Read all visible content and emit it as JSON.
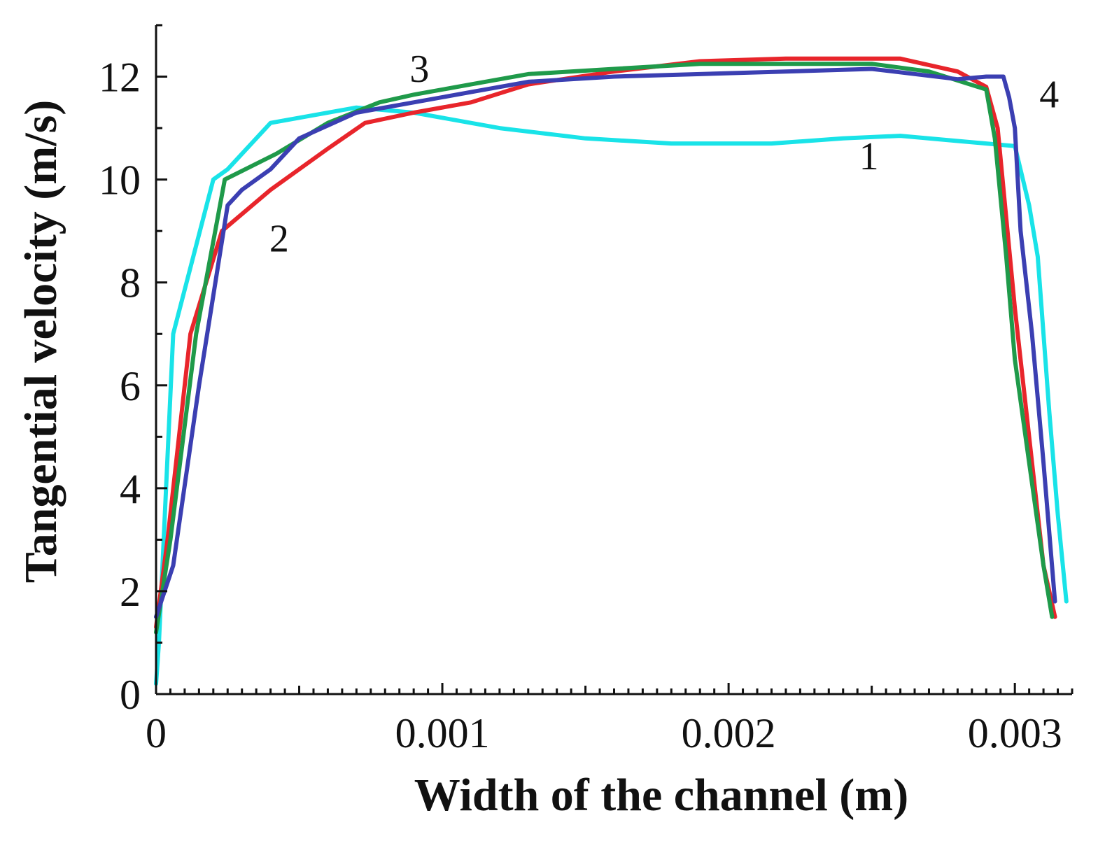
{
  "chart_data": {
    "type": "line",
    "title": "",
    "xlabel": "Width of the channel (m)",
    "ylabel": "Tangential velocity (m/s)",
    "xlim": [
      0,
      0.0032
    ],
    "ylim": [
      0,
      13
    ],
    "xticks": [
      0,
      0.001,
      0.002,
      0.003
    ],
    "xtick_labels": [
      "0",
      "0.001",
      "0.002",
      "0.003"
    ],
    "yticks": [
      0,
      2,
      4,
      6,
      8,
      10,
      12
    ],
    "ytick_labels": [
      "0",
      "2",
      "4",
      "6",
      "8",
      "10",
      "12"
    ],
    "grid": false,
    "series": [
      {
        "name": "1",
        "color": "#19e3e8",
        "label_pos": [
          0.00249,
          10.2
        ],
        "x": [
          0,
          1e-05,
          6e-05,
          0.0002,
          0.00025,
          0.0004,
          0.0007,
          0.0009,
          0.0012,
          0.0015,
          0.0018,
          0.0021,
          0.00215,
          0.0024,
          0.0026,
          0.0028,
          0.0029,
          0.003,
          0.00305,
          0.00308,
          0.0031,
          0.00312,
          0.00315,
          0.00318
        ],
        "y": [
          0.2,
          1.0,
          7.0,
          10.0,
          10.2,
          11.1,
          11.4,
          11.3,
          11.0,
          10.8,
          10.7,
          10.7,
          10.7,
          10.8,
          10.85,
          10.75,
          10.7,
          10.65,
          9.5,
          8.5,
          7.0,
          5.5,
          3.5,
          1.8
        ]
      },
      {
        "name": "2",
        "color": "#e8252b",
        "label_pos": [
          0.00043,
          8.6
        ],
        "x": [
          0,
          4e-05,
          0.00012,
          0.00023,
          0.0004,
          0.0006,
          0.00073,
          0.0009,
          0.0011,
          0.0013,
          0.0016,
          0.0019,
          0.0022,
          0.0025,
          0.0026,
          0.0028,
          0.0029,
          0.00294,
          0.003,
          0.00305,
          0.0031,
          0.00314
        ],
        "y": [
          1.3,
          3.0,
          7.0,
          9.0,
          9.8,
          10.6,
          11.1,
          11.3,
          11.5,
          11.85,
          12.1,
          12.3,
          12.35,
          12.35,
          12.35,
          12.1,
          11.8,
          11.0,
          7.5,
          5.0,
          2.5,
          1.5
        ]
      },
      {
        "name": "3",
        "color": "#1f9a4a",
        "label_pos": [
          0.00092,
          11.9
        ],
        "x": [
          0,
          5e-05,
          0.00014,
          0.00024,
          0.00042,
          0.0006,
          0.00078,
          0.0009,
          0.0011,
          0.0013,
          0.0016,
          0.0019,
          0.0022,
          0.0025,
          0.0027,
          0.0029,
          0.00293,
          0.00297,
          0.003,
          0.00305,
          0.0031,
          0.00313
        ],
        "y": [
          1.2,
          3.0,
          7.0,
          10.0,
          10.5,
          11.1,
          11.5,
          11.65,
          11.85,
          12.05,
          12.15,
          12.25,
          12.25,
          12.25,
          12.1,
          11.75,
          10.8,
          8.5,
          6.5,
          4.5,
          2.5,
          1.5
        ]
      },
      {
        "name": "4",
        "color": "#3b3fb2",
        "label_pos": [
          0.00312,
          11.4
        ],
        "x": [
          0,
          6e-05,
          0.00015,
          0.00025,
          0.0003,
          0.0004,
          0.0005,
          0.0007,
          0.0009,
          0.0011,
          0.0013,
          0.0016,
          0.0019,
          0.0022,
          0.0025,
          0.0028,
          0.0029,
          0.00296,
          0.00298,
          0.003,
          0.00302,
          0.00306,
          0.0031,
          0.00314
        ],
        "y": [
          1.5,
          2.5,
          6.0,
          9.5,
          9.8,
          10.2,
          10.8,
          11.3,
          11.5,
          11.7,
          11.9,
          12.0,
          12.05,
          12.1,
          12.15,
          11.95,
          12.0,
          12.0,
          11.6,
          11.0,
          9.0,
          7.0,
          4.5,
          1.8
        ]
      }
    ]
  }
}
